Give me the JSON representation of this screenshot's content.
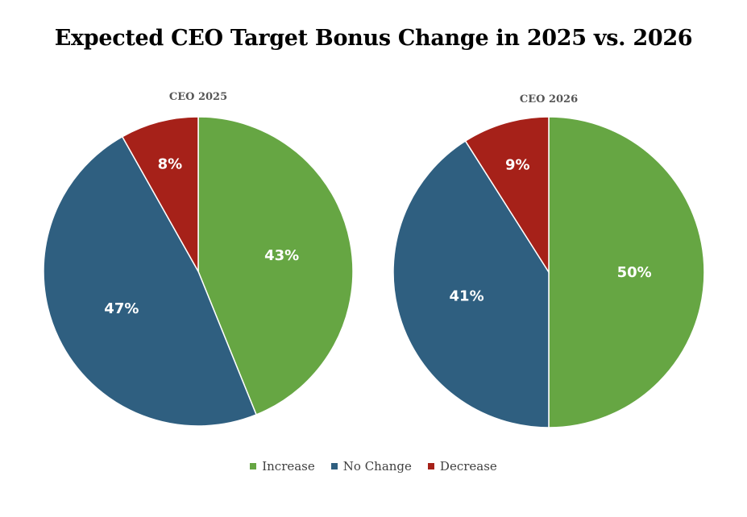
{
  "chart_data": {
    "title": "Expected CEO Target Bonus Change in 2025 vs. 2026",
    "legend_position": "bottom",
    "categories": [
      "Increase",
      "No Change",
      "Decrease"
    ],
    "colors": {
      "Increase": "#66a643",
      "No Change": "#2f5f80",
      "Decrease": "#a62119"
    },
    "charts": [
      {
        "type": "pie",
        "title": "CEO 2025",
        "slices": [
          {
            "label": "Increase",
            "value": 43,
            "display": "43%"
          },
          {
            "label": "No Change",
            "value": 47,
            "display": "47%"
          },
          {
            "label": "Decrease",
            "value": 8,
            "display": "8%"
          }
        ]
      },
      {
        "type": "pie",
        "title": "CEO 2026",
        "slices": [
          {
            "label": "Increase",
            "value": 50,
            "display": "50%"
          },
          {
            "label": "No Change",
            "value": 41,
            "display": "41%"
          },
          {
            "label": "Decrease",
            "value": 9,
            "display": "9%"
          }
        ]
      }
    ]
  }
}
